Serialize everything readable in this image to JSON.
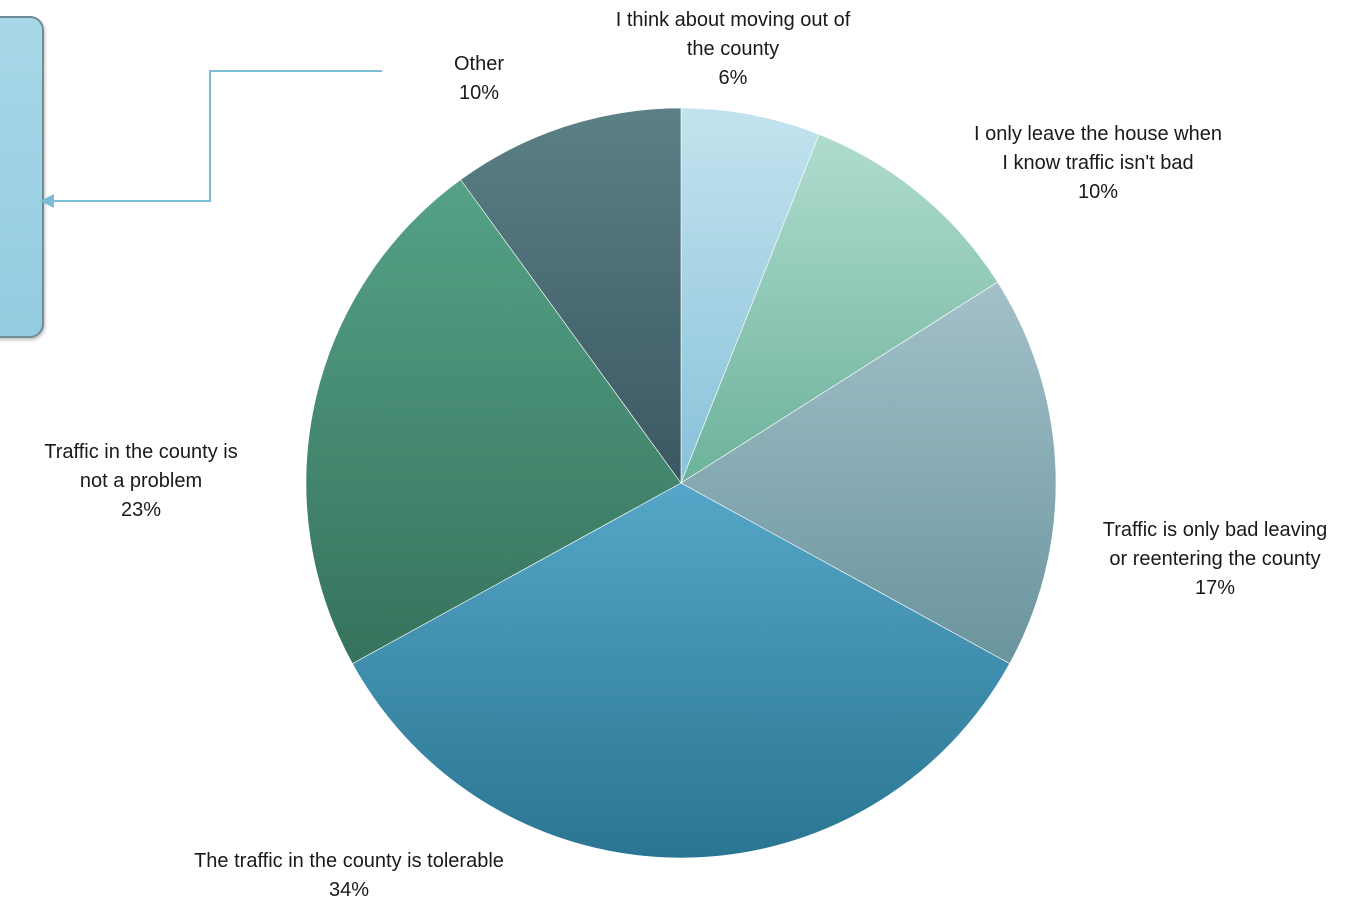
{
  "chart_data": {
    "type": "pie",
    "title": "",
    "slices": [
      {
        "label": "I think about moving out of the county",
        "value": 6,
        "pct": "6%",
        "colors": [
          "#c3e3ee",
          "#88c2da"
        ]
      },
      {
        "label": "I only leave the house when I know traffic isn't bad",
        "value": 10,
        "pct": "10%",
        "colors": [
          "#b0dcce",
          "#6cb29b"
        ]
      },
      {
        "label": "Traffic is only bad leaving or reentering the county",
        "value": 17,
        "pct": "17%",
        "colors": [
          "#a3c1ca",
          "#6a949d"
        ]
      },
      {
        "label": "The traffic in the county is tolerable",
        "value": 34,
        "pct": "34%",
        "colors": [
          "#55a6c8",
          "#2a7592"
        ]
      },
      {
        "label": "Traffic in the county is not a problem",
        "value": 23,
        "pct": "23%",
        "colors": [
          "#55a286",
          "#36735c"
        ]
      },
      {
        "label": "Other",
        "value": 10,
        "pct": "10%",
        "colors": [
          "#5b8086",
          "#3b5862"
        ]
      }
    ]
  },
  "labels": {
    "moving": {
      "lines": [
        "I think about moving out of",
        "the county"
      ],
      "pct": "6%"
    },
    "leave_house": {
      "lines": [
        "I only leave the house when",
        "I know traffic isn't bad"
      ],
      "pct": "10%"
    },
    "leaving_reentering": {
      "lines": [
        "Traffic is only bad leaving",
        "or reentering the county"
      ],
      "pct": "17%"
    },
    "tolerable": {
      "lines": [
        "The traffic in the county is tolerable"
      ],
      "pct": "34%"
    },
    "not_problem": {
      "lines": [
        "Traffic in the county is",
        "not a problem"
      ],
      "pct": "23%"
    },
    "other": {
      "lines": [
        "Other"
      ],
      "pct": "10%"
    }
  },
  "colors": {
    "callout_fill": "#a9d8e8",
    "callout_border": "#6e8d98",
    "connector": "#7dbcd6"
  }
}
